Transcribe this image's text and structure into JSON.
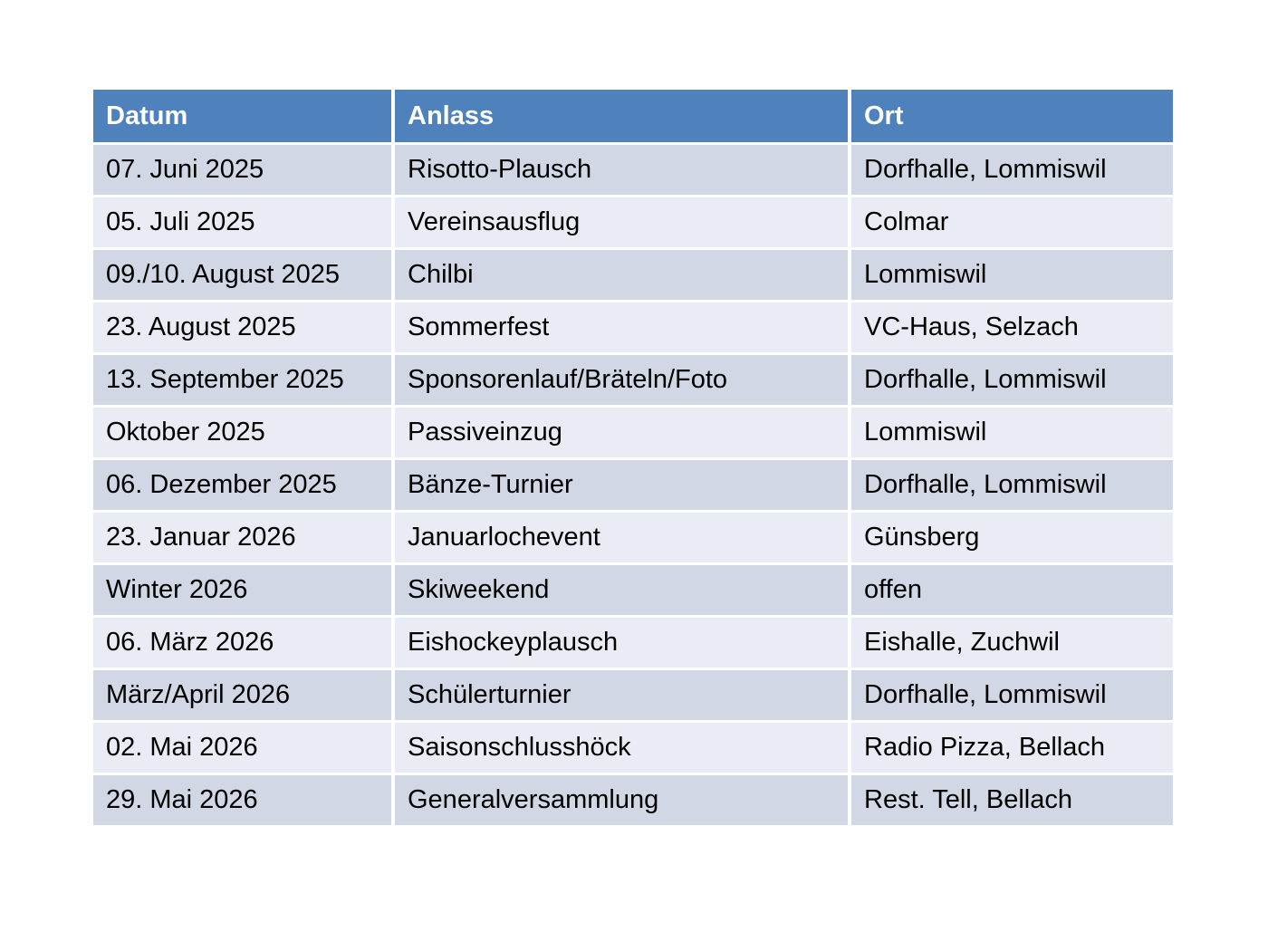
{
  "table": {
    "columns": [
      "Datum",
      "Anlass",
      "Ort"
    ],
    "rows": [
      [
        "07. Juni 2025",
        "Risotto-Plausch",
        "Dorfhalle, Lommiswil"
      ],
      [
        "05. Juli 2025",
        "Vereinsausflug",
        "Colmar"
      ],
      [
        "09./10. August 2025",
        "Chilbi",
        "Lommiswil"
      ],
      [
        "23. August 2025",
        "Sommerfest",
        "VC-Haus, Selzach"
      ],
      [
        "13. September 2025",
        "Sponsorenlauf/Bräteln/Foto",
        "Dorfhalle, Lommiswil"
      ],
      [
        "Oktober 2025",
        "Passiveinzug",
        "Lommiswil"
      ],
      [
        "06. Dezember 2025",
        "Bänze-Turnier",
        "Dorfhalle, Lommiswil"
      ],
      [
        "23. Januar 2026",
        "Januarlochevent",
        "Günsberg"
      ],
      [
        "Winter 2026",
        "Skiweekend",
        "offen"
      ],
      [
        "06. März 2026",
        "Eishockeyplausch",
        "Eishalle, Zuchwil"
      ],
      [
        "März/April 2026",
        "Schülerturnier",
        "Dorfhalle, Lommiswil"
      ],
      [
        "02. Mai 2026",
        "Saisonschlusshöck",
        "Radio Pizza, Bellach"
      ],
      [
        "29. Mai 2026",
        "Generalversammlung",
        "Rest. Tell, Bellach"
      ]
    ]
  },
  "colors": {
    "page_bg": "#FFFFFF",
    "header_bg": "#4F81BD",
    "header_text": "#FFFFFF",
    "row_dark": "#D2D7E5",
    "row_light": "#E9ECF4",
    "body_text": "#000000"
  }
}
